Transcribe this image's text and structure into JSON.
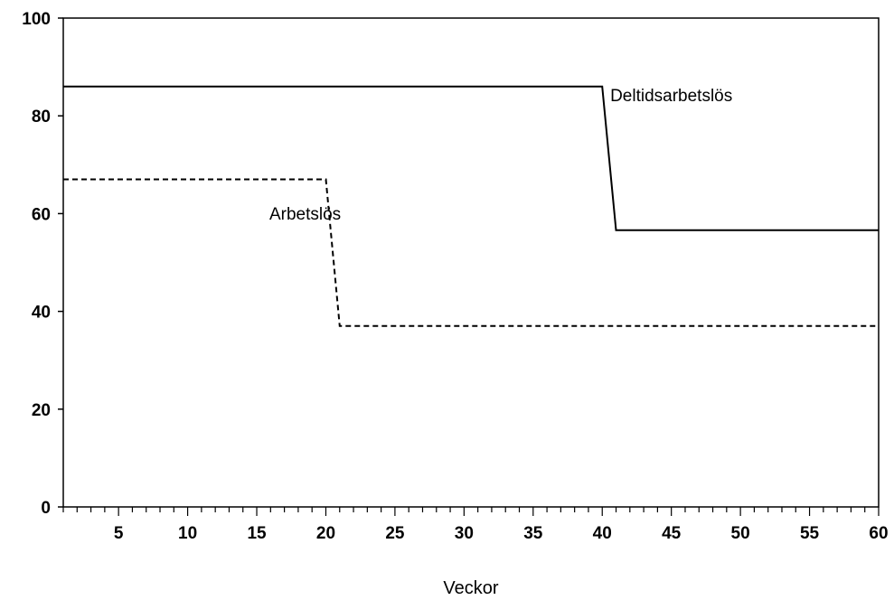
{
  "chart_data": {
    "type": "line",
    "xlabel": "Veckor",
    "ylabel": "",
    "xlim": [
      1,
      60
    ],
    "ylim": [
      0,
      100
    ],
    "x_ticks": [
      5,
      10,
      15,
      20,
      25,
      30,
      35,
      40,
      45,
      50,
      55,
      60
    ],
    "y_ticks": [
      0,
      20,
      40,
      60,
      80,
      100
    ],
    "x_minor_step": 1,
    "grid": false,
    "series": [
      {
        "name": "Deltidsarbetslös",
        "line_style": "solid",
        "color": "#000000",
        "points": [
          [
            1,
            86
          ],
          [
            40,
            86
          ],
          [
            41,
            56.6
          ],
          [
            60,
            56.6
          ]
        ],
        "label_at": [
          45,
          83
        ]
      },
      {
        "name": "Arbetslös",
        "line_style": "dashed",
        "color": "#000000",
        "points": [
          [
            1,
            67
          ],
          [
            20,
            67
          ],
          [
            21,
            37
          ],
          [
            60,
            37
          ]
        ],
        "label_at": [
          18.5,
          58.8
        ]
      }
    ]
  }
}
